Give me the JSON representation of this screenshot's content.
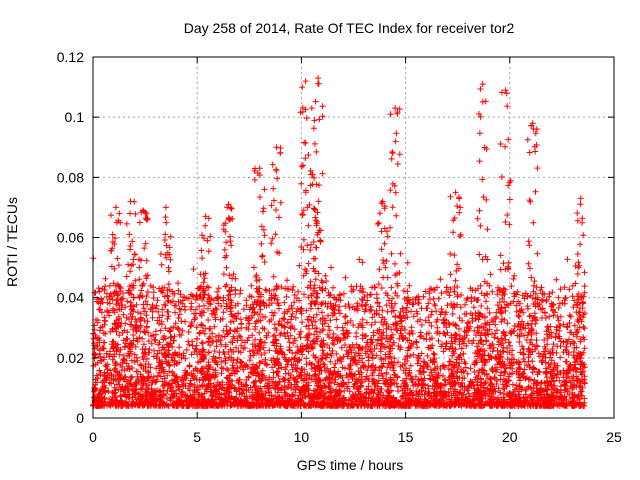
{
  "chart_data": {
    "type": "scatter",
    "title": "Day 258 of 2014, Rate Of TEC Index for receiver tor2",
    "xlabel": "GPS time / hours",
    "ylabel": "ROTI / TECUs",
    "xlim": [
      0,
      25
    ],
    "ylim": [
      0,
      0.12
    ],
    "x_ticks": [
      0,
      5,
      10,
      15,
      20,
      25
    ],
    "x_tick_labels": [
      "0",
      "5",
      "10",
      "15",
      "20",
      "25"
    ],
    "y_ticks": [
      0,
      0.02,
      0.04,
      0.06,
      0.08,
      0.1,
      0.12
    ],
    "y_tick_labels": [
      "0",
      "0.02",
      "0.04",
      "0.06",
      "0.08",
      "0.1",
      "0.12"
    ],
    "grid": true,
    "marker": "plus",
    "marker_color": "#ff0000",
    "observed_x_range": [
      0,
      23.6
    ],
    "peaks": [
      {
        "x": 1.1,
        "y": 0.07
      },
      {
        "x": 1.8,
        "y": 0.072
      },
      {
        "x": 2.4,
        "y": 0.069
      },
      {
        "x": 3.5,
        "y": 0.07
      },
      {
        "x": 5.4,
        "y": 0.067
      },
      {
        "x": 6.5,
        "y": 0.071
      },
      {
        "x": 8.0,
        "y": 0.083
      },
      {
        "x": 8.8,
        "y": 0.09
      },
      {
        "x": 10.5,
        "y": 0.103
      },
      {
        "x": 10.8,
        "y": 0.113
      },
      {
        "x": 10.2,
        "y": 0.112
      },
      {
        "x": 13.9,
        "y": 0.072
      },
      {
        "x": 14.5,
        "y": 0.103
      },
      {
        "x": 17.4,
        "y": 0.075
      },
      {
        "x": 18.7,
        "y": 0.111
      },
      {
        "x": 19.8,
        "y": 0.109
      },
      {
        "x": 21.1,
        "y": 0.098
      },
      {
        "x": 23.4,
        "y": 0.073
      }
    ]
  }
}
